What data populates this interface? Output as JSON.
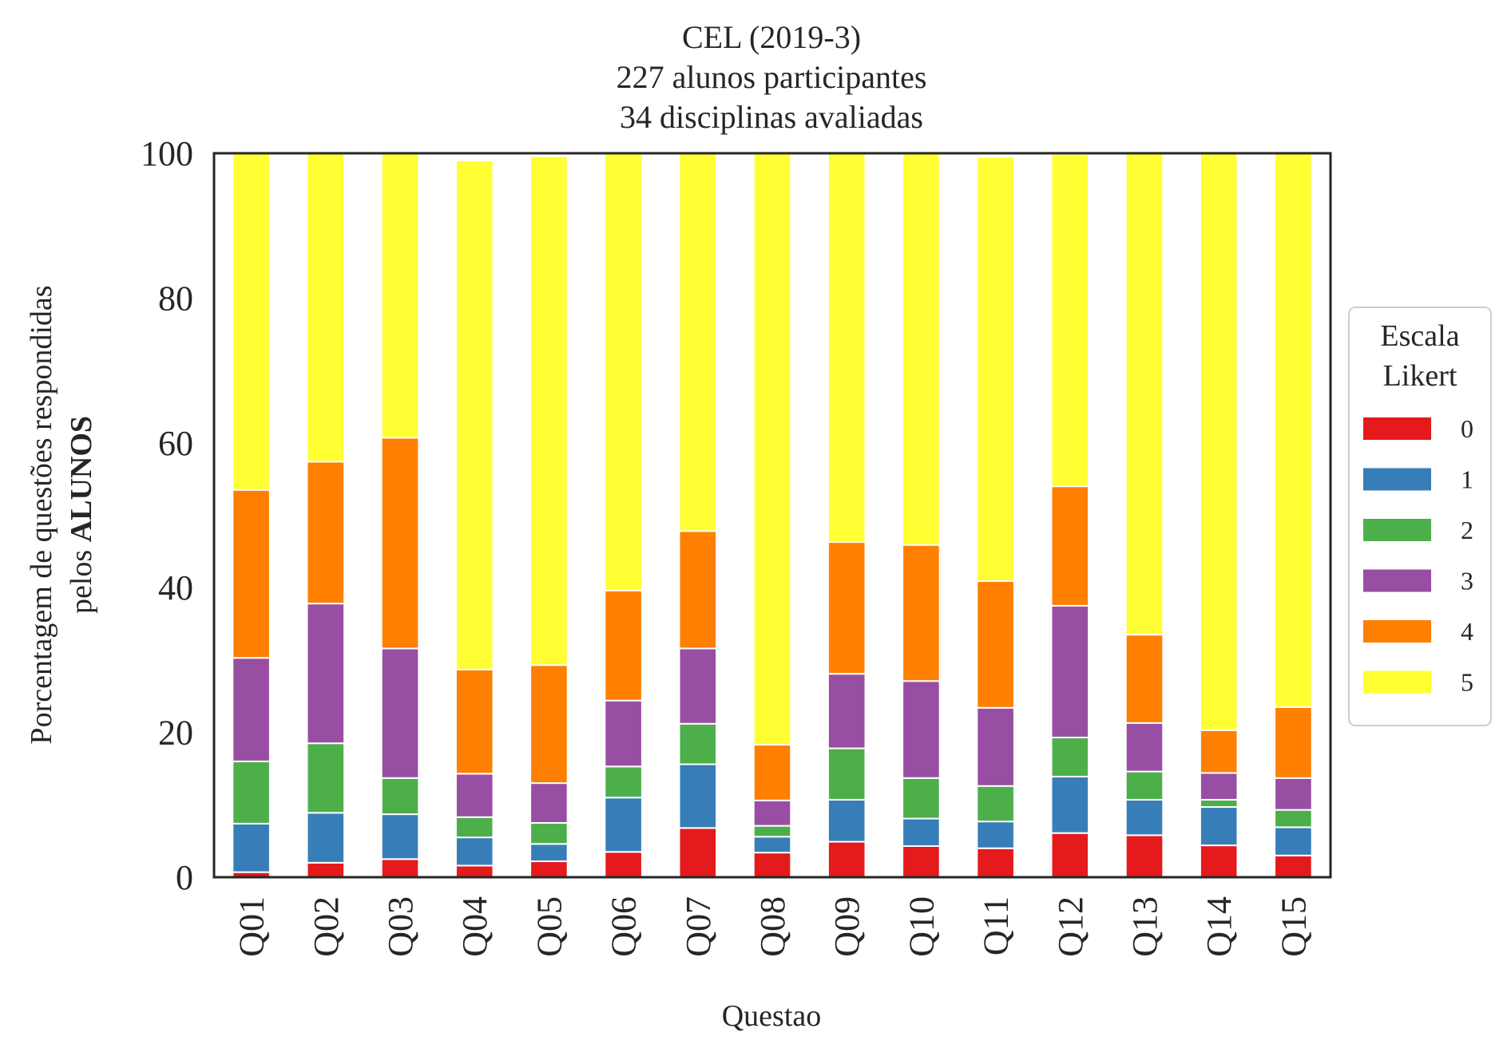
{
  "chart_data": {
    "type": "bar",
    "stacked": true,
    "title_lines": [
      "CEL (2019-3)",
      "227 alunos participantes",
      "34 disciplinas avaliadas"
    ],
    "xlabel": "Questao",
    "ylabel_line1": "Porcentagem de questões respondidas",
    "ylabel_line2_prefix": "pelos ",
    "ylabel_line2_bold": "ALUNOS",
    "ylim": [
      0,
      100
    ],
    "yticks": [
      "0",
      "20",
      "40",
      "60",
      "80",
      "100"
    ],
    "grid": false,
    "legend": {
      "title_lines": [
        "Escala",
        "Likert"
      ],
      "placement": "right"
    },
    "categories": [
      "Q01",
      "Q02",
      "Q03",
      "Q04",
      "Q05",
      "Q06",
      "Q07",
      "Q08",
      "Q09",
      "Q10",
      "Q11",
      "Q12",
      "Q13",
      "Q14",
      "Q15"
    ],
    "series": [
      {
        "name": "0",
        "color": "#e41a1c",
        "values": [
          0.7,
          2.0,
          2.5,
          1.6,
          2.2,
          3.5,
          6.8,
          3.4,
          4.9,
          4.3,
          4.0,
          6.1,
          5.8,
          4.4,
          3.0
        ]
      },
      {
        "name": "1",
        "color": "#377eb8",
        "values": [
          6.7,
          6.9,
          6.2,
          3.9,
          2.4,
          7.5,
          8.8,
          2.2,
          5.8,
          3.8,
          3.7,
          7.8,
          4.9,
          5.3,
          3.9
        ]
      },
      {
        "name": "2",
        "color": "#4daf4a",
        "values": [
          8.6,
          9.6,
          5.0,
          2.8,
          2.9,
          4.3,
          5.6,
          1.5,
          7.1,
          5.6,
          4.9,
          5.4,
          3.9,
          1.0,
          2.4
        ]
      },
      {
        "name": "3",
        "color": "#984ea3",
        "values": [
          14.3,
          19.3,
          17.9,
          6.0,
          5.5,
          9.1,
          10.4,
          3.5,
          10.3,
          13.4,
          10.8,
          18.2,
          6.7,
          3.7,
          4.4
        ]
      },
      {
        "name": "4",
        "color": "#ff7f00",
        "values": [
          23.2,
          19.6,
          29.1,
          14.4,
          16.3,
          15.2,
          16.2,
          7.7,
          18.2,
          18.8,
          17.5,
          16.5,
          12.2,
          5.9,
          9.8
        ]
      },
      {
        "name": "5",
        "color": "#ffff33",
        "values": [
          46.5,
          42.6,
          39.3,
          70.3,
          70.3,
          60.4,
          52.2,
          81.7,
          53.7,
          54.1,
          58.6,
          45.9,
          66.5,
          79.7,
          76.5
        ]
      }
    ]
  }
}
